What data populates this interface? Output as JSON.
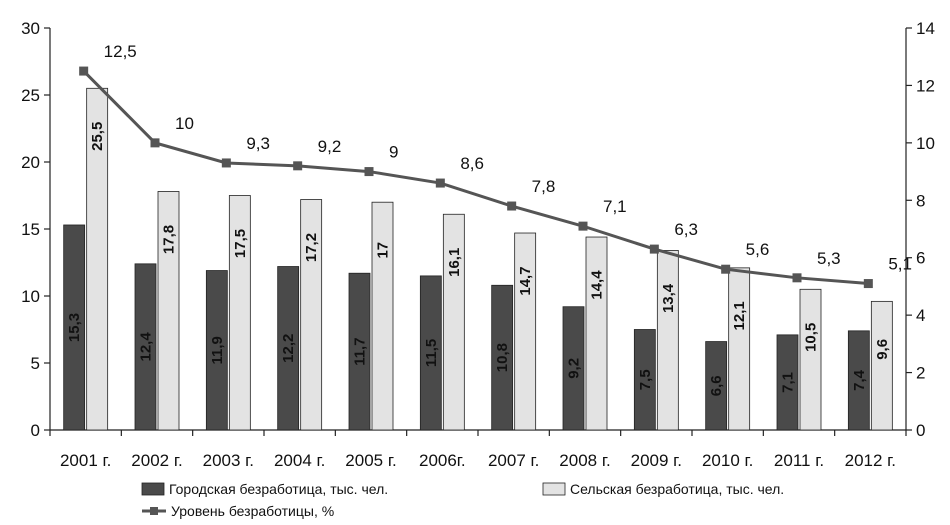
{
  "chart_data": {
    "type": "bar",
    "categories": [
      "2001 г.",
      "2002 г.",
      "2003 г.",
      "2004 г.",
      "2005 г.",
      "2006г.",
      "2007 г.",
      "2008 г.",
      "2009 г.",
      "2010 г.",
      "2011 г.",
      "2012 г."
    ],
    "series": [
      {
        "name": "Городская безработица, тыс. чел.",
        "type": "bar",
        "axis": "left",
        "color": "#4a4a4a",
        "values": [
          15.3,
          12.4,
          11.9,
          12.2,
          11.7,
          11.5,
          10.8,
          9.2,
          7.5,
          6.6,
          7.1,
          7.4
        ],
        "labels": [
          "15,3",
          "12,4",
          "11,9",
          "12,2",
          "11,7",
          "11,5",
          "10,8",
          "9,2",
          "7,5",
          "6,6",
          "7,1",
          "7,4"
        ]
      },
      {
        "name": "Сельская безработица, тыс. чел.",
        "type": "bar",
        "axis": "left",
        "color": "#e3e3e3",
        "values": [
          25.5,
          17.8,
          17.5,
          17.2,
          17,
          16.1,
          14.7,
          14.4,
          13.4,
          12.1,
          10.5,
          9.6
        ],
        "labels": [
          "25,5",
          "17,8",
          "17,5",
          "17,2",
          "17",
          "16,1",
          "14,7",
          "14,4",
          "13,4",
          "12,1",
          "10,5",
          "9,6"
        ]
      },
      {
        "name": "Уровень безработицы, %",
        "type": "line",
        "axis": "right",
        "color": "#555555",
        "values": [
          12.5,
          10,
          9.3,
          9.2,
          9,
          8.6,
          7.8,
          7.1,
          6.3,
          5.6,
          5.3,
          5.1
        ],
        "labels": [
          "12,5",
          "10",
          "9,3",
          "9,2",
          "9",
          "8,6",
          "7,8",
          "7,1",
          "6,3",
          "5,6",
          "5,3",
          "5,1"
        ]
      }
    ],
    "y_left": {
      "range": [
        0,
        30
      ],
      "ticks": [
        0,
        5,
        10,
        15,
        20,
        25,
        30
      ],
      "tick_labels": [
        "0",
        "5",
        "10",
        "15",
        "20",
        "25",
        "30"
      ]
    },
    "y_right": {
      "range": [
        0,
        14
      ],
      "ticks": [
        0,
        2,
        4,
        6,
        8,
        10,
        12,
        14
      ],
      "tick_labels": [
        "0",
        "2",
        "4",
        "6",
        "8",
        "10",
        "12",
        "14"
      ]
    },
    "grid": false,
    "legend_position": "bottom",
    "title": "",
    "xlabel": "",
    "ylabel": ""
  }
}
